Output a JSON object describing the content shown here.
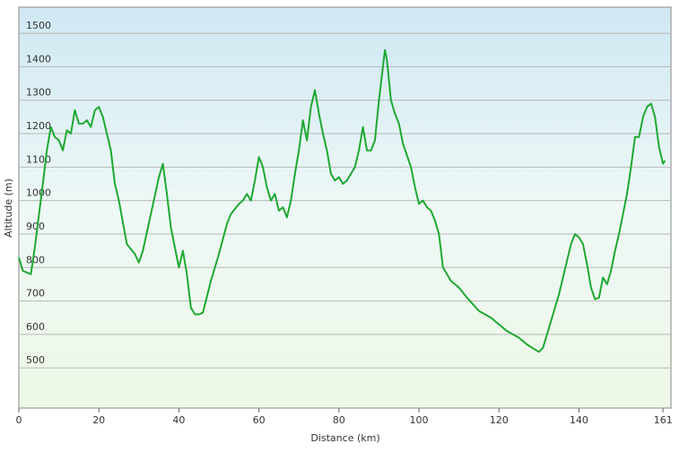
{
  "chart_data": {
    "type": "line",
    "x_label": "Distance  (km)",
    "y_label": "Altitude (m)",
    "x": [
      0,
      1,
      3,
      4,
      6,
      7,
      8,
      9,
      10,
      11,
      12,
      13,
      14,
      15,
      16,
      17,
      18,
      19,
      20,
      21,
      22,
      23,
      24,
      25,
      27,
      29,
      30,
      31,
      33,
      35,
      36,
      37,
      38,
      39,
      40,
      41,
      42,
      43,
      44,
      45,
      46,
      48,
      50,
      52,
      53,
      55,
      56,
      57,
      58,
      59,
      60,
      61,
      62,
      63,
      64,
      65,
      66,
      67,
      68,
      69,
      70,
      71,
      72,
      73,
      74,
      75,
      76,
      77,
      78,
      79,
      80,
      81,
      82,
      84,
      85,
      86,
      87,
      88,
      89,
      90,
      91,
      91.5,
      92,
      93,
      94,
      95,
      96,
      98,
      99,
      100,
      101,
      102,
      103,
      104,
      105,
      106,
      108,
      110,
      112,
      115,
      118,
      120,
      122,
      125,
      127,
      129,
      130,
      131,
      133,
      135,
      137,
      138,
      139,
      140,
      141,
      142,
      143,
      144,
      145,
      146,
      147,
      148,
      149,
      150,
      152,
      153,
      154,
      155,
      156,
      157,
      158,
      159,
      160,
      161,
      161.5
    ],
    "series": [
      {
        "name": "Altitude",
        "color": "#1fa832",
        "values": [
          830,
          790,
          780,
          860,
          1050,
          1150,
          1220,
          1190,
          1180,
          1150,
          1210,
          1200,
          1270,
          1230,
          1230,
          1240,
          1220,
          1270,
          1280,
          1250,
          1200,
          1150,
          1050,
          1000,
          870,
          840,
          815,
          850,
          960,
          1070,
          1110,
          1020,
          920,
          860,
          800,
          850,
          780,
          680,
          660,
          660,
          665,
          760,
          840,
          930,
          960,
          990,
          1000,
          1020,
          1000,
          1060,
          1130,
          1100,
          1040,
          1000,
          1020,
          970,
          980,
          950,
          1000,
          1080,
          1150,
          1240,
          1180,
          1280,
          1330,
          1260,
          1200,
          1150,
          1080,
          1060,
          1070,
          1050,
          1060,
          1100,
          1150,
          1220,
          1150,
          1150,
          1180,
          1300,
          1400,
          1450,
          1420,
          1300,
          1260,
          1230,
          1170,
          1100,
          1040,
          990,
          1000,
          980,
          970,
          940,
          900,
          800,
          760,
          740,
          710,
          670,
          650,
          630,
          610,
          590,
          570,
          555,
          548,
          560,
          640,
          720,
          820,
          870,
          900,
          890,
          870,
          810,
          740,
          705,
          710,
          770,
          750,
          790,
          850,
          900,
          1020,
          1100,
          1190,
          1190,
          1250,
          1280,
          1290,
          1250,
          1160,
          1110,
          1120
        ]
      }
    ],
    "xlim": [
      0,
      163
    ],
    "ylim": [
      380,
      1578
    ],
    "xticks": [
      0,
      20,
      40,
      60,
      80,
      100,
      120,
      140,
      161
    ],
    "yticks": [
      500,
      600,
      700,
      800,
      900,
      1000,
      1100,
      1200,
      1300,
      1400,
      1500
    ],
    "grid": true
  }
}
